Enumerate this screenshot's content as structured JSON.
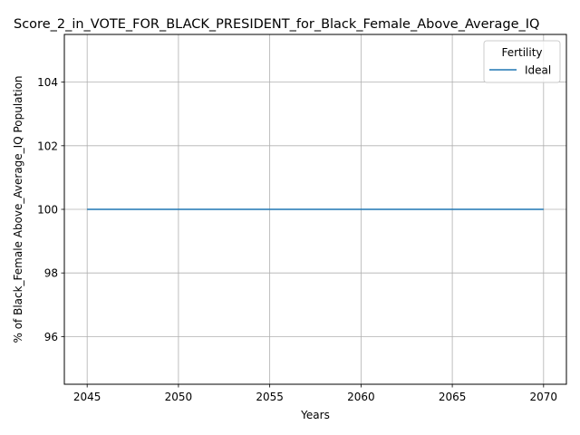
{
  "chart_data": {
    "type": "line",
    "title": "Score_2_in_VOTE_FOR_BLACK_PRESIDENT_for_Black_Female_Above_Average_IQ",
    "xlabel": "Years",
    "ylabel": "% of Black_Female Above_Average_IQ Population",
    "xlim": [
      2043.75,
      2071.25
    ],
    "ylim": [
      94.5,
      105.5
    ],
    "xticks": [
      2045,
      2050,
      2055,
      2060,
      2065,
      2070
    ],
    "yticks": [
      96,
      98,
      100,
      102,
      104
    ],
    "grid": true,
    "legend": {
      "title": "Fertility",
      "placement": "top-right"
    },
    "series": [
      {
        "name": "Ideal",
        "color": "#1f77b4",
        "x": [
          2045,
          2046,
          2047,
          2048,
          2049,
          2050,
          2051,
          2052,
          2053,
          2054,
          2055,
          2056,
          2057,
          2058,
          2059,
          2060,
          2061,
          2062,
          2063,
          2064,
          2065,
          2066,
          2067,
          2068,
          2069,
          2070
        ],
        "y": [
          100,
          100,
          100,
          100,
          100,
          100,
          100,
          100,
          100,
          100,
          100,
          100,
          100,
          100,
          100,
          100,
          100,
          100,
          100,
          100,
          100,
          100,
          100,
          100,
          100,
          100
        ]
      }
    ]
  }
}
